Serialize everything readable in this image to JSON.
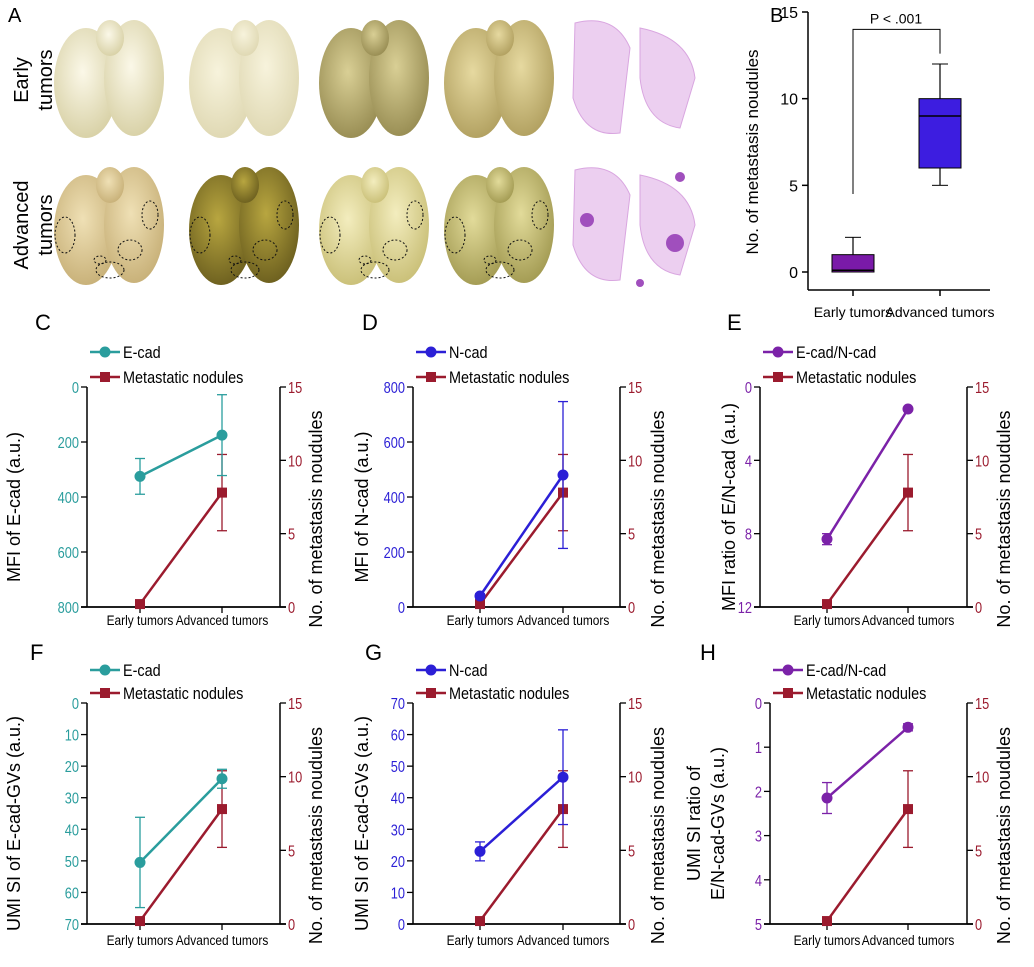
{
  "panel_a": {
    "letter": "A",
    "row_labels": [
      [
        "Early",
        "tumors"
      ],
      [
        "Advanced",
        "tumors"
      ]
    ]
  },
  "colors": {
    "ecad": "#2a9d9d",
    "ncad": "#2b1fd6",
    "ratio": "#7b22a8",
    "nodules": "#9b1b2e",
    "box_early": "#7a1aa8",
    "box_advanced": "#3d1de0"
  },
  "chart_data": [
    {
      "panel": "B",
      "type": "box",
      "categories": [
        "Early tumors",
        "Advanced tumors"
      ],
      "ylabel": "No. of metastasis noudules",
      "ylim": [
        0,
        15
      ],
      "yticks": [
        0,
        5,
        10,
        15
      ],
      "boxes": [
        {
          "min": 0,
          "q1": 0,
          "median": 0.1,
          "q3": 1,
          "max": 2
        },
        {
          "min": 5,
          "q1": 6,
          "median": 9,
          "q3": 10,
          "max": 12
        }
      ],
      "annotation": "P < .001"
    },
    {
      "panel": "C",
      "type": "line",
      "categories": [
        "Early tumors",
        "Advanced tumors"
      ],
      "y_left": {
        "label": [
          "MFI of E-cad (a.u.)"
        ],
        "ylim": [
          0,
          800
        ],
        "ticks": [
          0,
          200,
          400,
          600,
          800
        ],
        "reversed": true
      },
      "y_right": {
        "label": "No. of metastasis noudules",
        "ylim": [
          0,
          15
        ],
        "ticks": [
          0,
          5,
          10,
          15
        ]
      },
      "series": [
        {
          "name": "E-cad",
          "axis": "left",
          "marker": "circle",
          "values": [
            325,
            175
          ],
          "errors": [
            65,
            147
          ]
        },
        {
          "name": "Metastatic nodules",
          "axis": "right",
          "marker": "square",
          "values": [
            0.2,
            7.8
          ],
          "errors": [
            0.2,
            2.6
          ]
        }
      ]
    },
    {
      "panel": "D",
      "type": "line",
      "categories": [
        "Early tumors",
        "Advanced tumors"
      ],
      "y_left": {
        "label": [
          "MFI of N-cad (a.u.)"
        ],
        "ylim": [
          0,
          800
        ],
        "ticks": [
          0,
          200,
          400,
          600,
          800
        ],
        "reversed": false
      },
      "y_right": {
        "label": "No. of metastasis noudules",
        "ylim": [
          0,
          15
        ],
        "ticks": [
          0,
          5,
          10,
          15
        ]
      },
      "series": [
        {
          "name": "N-cad",
          "axis": "left",
          "marker": "circle",
          "values": [
            40,
            480
          ],
          "errors": [
            8,
            267
          ]
        },
        {
          "name": "Metastatic nodules",
          "axis": "right",
          "marker": "square",
          "values": [
            0.2,
            7.8
          ],
          "errors": [
            0.2,
            2.6
          ]
        }
      ]
    },
    {
      "panel": "E",
      "type": "line",
      "categories": [
        "Early tumors",
        "Advanced tumors"
      ],
      "y_left": {
        "label": [
          "MFI ratio of E/N-cad (a.u.)"
        ],
        "ylim": [
          0,
          12
        ],
        "ticks": [
          0,
          4,
          8,
          12
        ],
        "reversed": true
      },
      "y_right": {
        "label": "No. of metastasis noudules",
        "ylim": [
          0,
          15
        ],
        "ticks": [
          0,
          5,
          10,
          15
        ]
      },
      "series": [
        {
          "name": "E-cad/N-cad",
          "axis": "left",
          "marker": "circle",
          "values": [
            8.3,
            1.2
          ],
          "errors": [
            0.3,
            0.1
          ]
        },
        {
          "name": "Metastatic nodules",
          "axis": "right",
          "marker": "square",
          "values": [
            0.2,
            7.8
          ],
          "errors": [
            0.2,
            2.6
          ]
        }
      ]
    },
    {
      "panel": "F",
      "type": "line",
      "categories": [
        "Early tumors",
        "Advanced tumors"
      ],
      "y_left": {
        "label": [
          "UMI SI of E-cad-GVs (a.u.)"
        ],
        "ylim": [
          0,
          70
        ],
        "ticks": [
          0,
          10,
          20,
          30,
          40,
          50,
          60,
          70
        ],
        "reversed": true
      },
      "y_right": {
        "label": "No. of metastasis noudules",
        "ylim": [
          0,
          15
        ],
        "ticks": [
          0,
          5,
          10,
          15
        ]
      },
      "series": [
        {
          "name": "E-cad",
          "axis": "left",
          "marker": "circle",
          "values": [
            50.5,
            24
          ],
          "errors": [
            14.3,
            3
          ]
        },
        {
          "name": "Metastatic nodules",
          "axis": "right",
          "marker": "square",
          "values": [
            0.2,
            7.8
          ],
          "errors": [
            0.2,
            2.6
          ]
        }
      ]
    },
    {
      "panel": "G",
      "type": "line",
      "categories": [
        "Early tumors",
        "Advanced tumors"
      ],
      "y_left": {
        "label": [
          "UMI SI of E-cad-GVs (a.u.)"
        ],
        "ylim": [
          0,
          70
        ],
        "ticks": [
          0,
          10,
          20,
          30,
          40,
          50,
          60,
          70
        ],
        "reversed": false
      },
      "y_right": {
        "label": "No. of metastasis noudules",
        "ylim": [
          0,
          15
        ],
        "ticks": [
          0,
          5,
          10,
          15
        ]
      },
      "series": [
        {
          "name": "N-cad",
          "axis": "left",
          "marker": "circle",
          "values": [
            23,
            46.5
          ],
          "errors": [
            3,
            15
          ]
        },
        {
          "name": "Metastatic nodules",
          "axis": "right",
          "marker": "square",
          "values": [
            0.2,
            7.8
          ],
          "errors": [
            0.2,
            2.6
          ]
        }
      ]
    },
    {
      "panel": "H",
      "type": "line",
      "categories": [
        "Early tumors",
        "Advanced tumors"
      ],
      "y_left": {
        "label": [
          "UMI SI ratio of",
          "E/N-cad-GVs (a.u.)"
        ],
        "ylim": [
          0,
          5
        ],
        "ticks": [
          0,
          1,
          2,
          3,
          4,
          5
        ],
        "reversed": true
      },
      "y_right": {
        "label": "No. of metastasis noudules",
        "ylim": [
          0,
          15
        ],
        "ticks": [
          0,
          5,
          10,
          15
        ]
      },
      "series": [
        {
          "name": "E-cad/N-cad",
          "axis": "left",
          "marker": "circle",
          "values": [
            2.15,
            0.55
          ],
          "errors": [
            0.35,
            0.08
          ]
        },
        {
          "name": "Metastatic nodules",
          "axis": "right",
          "marker": "square",
          "values": [
            0.2,
            7.8
          ],
          "errors": [
            0.2,
            2.6
          ]
        }
      ]
    }
  ]
}
